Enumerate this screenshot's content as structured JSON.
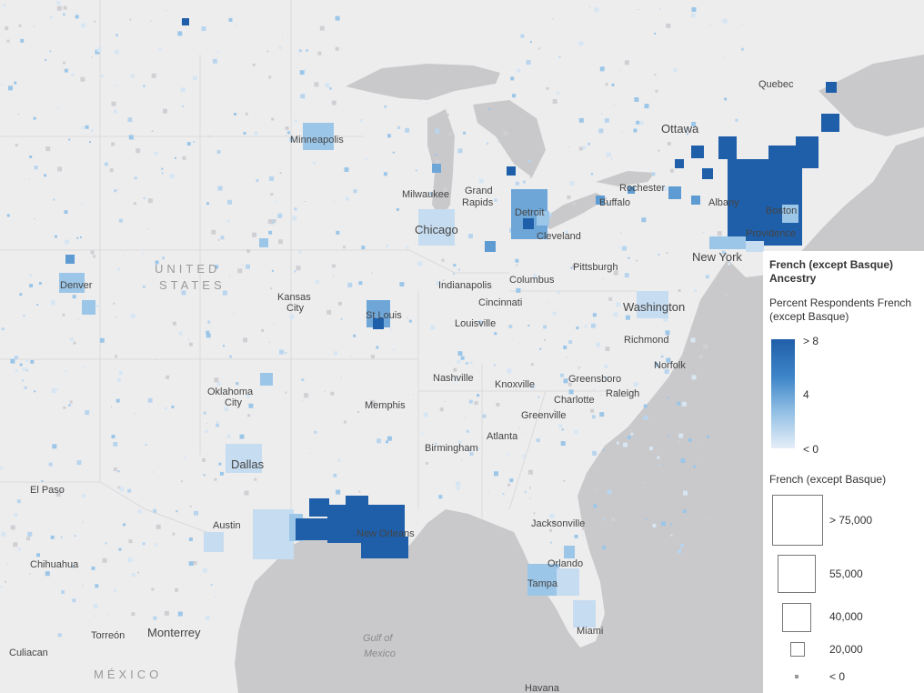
{
  "legend": {
    "title": "French (except Basque) Ancestry",
    "color_title": "Percent Respondents French (except Basque)",
    "color_high": "> 8",
    "color_mid": "4",
    "color_low": "< 0",
    "size_title": "French (except Basque)",
    "size_classes": [
      "> 75,000",
      "55,000",
      "40,000",
      "20,000",
      "< 0"
    ]
  },
  "labels": {
    "countries": [
      "UNITED",
      "STATES",
      "MÉXICO"
    ],
    "water": [
      "Gulf of",
      "Mexico"
    ],
    "cities": {
      "quebec": "Quebec",
      "ottawa": "Ottawa",
      "minneapolis": "Minneapolis",
      "milwaukee": "Milwaukee",
      "grand": "Grand",
      "rapids": "Rapids",
      "detroit": "Detroit",
      "rochester": "Rochester",
      "buffalo": "Buffalo",
      "albany": "Albany",
      "boston": "Boston",
      "providence": "Providence",
      "chicago": "Chicago",
      "cleveland": "Cleveland",
      "pittsburgh": "Pittsburgh",
      "newyork": "New York",
      "denver": "Denver",
      "kansas": "Kansas",
      "city1": "City",
      "indianapolis": "Indianapolis",
      "columbus": "Columbus",
      "cincinnati": "Cincinnati",
      "washington": "Washington",
      "stlouis": "St Louis",
      "louisville": "Louisville",
      "richmond": "Richmond",
      "norfolk": "Norfolk",
      "oklahoma": "Oklahoma",
      "city2": "City",
      "nashville": "Nashville",
      "knoxville": "Knoxville",
      "greensboro": "Greensboro",
      "raleigh": "Raleigh",
      "charlotte": "Charlotte",
      "memphis": "Memphis",
      "greenville": "Greenville",
      "atlanta": "Atlanta",
      "birmingham": "Birmingham",
      "dallas": "Dallas",
      "elpaso": "El Paso",
      "austin": "Austin",
      "neworleans": "New Orleans",
      "jacksonville": "Jacksonville",
      "orlando": "Orlando",
      "tampa": "Tampa",
      "miami": "Miami",
      "chihuahua": "Chihuahua",
      "torreon": "Torreón",
      "monterrey": "Monterrey",
      "culiacan": "Culiacan",
      "havana": "Havana"
    }
  },
  "colors": {
    "land": "#ededee",
    "water": "#c9c9cb",
    "dark": "#1f5fa9",
    "mid": "#3f86c9",
    "light": "#9cc6e8",
    "pale": "#c6dcf0"
  }
}
